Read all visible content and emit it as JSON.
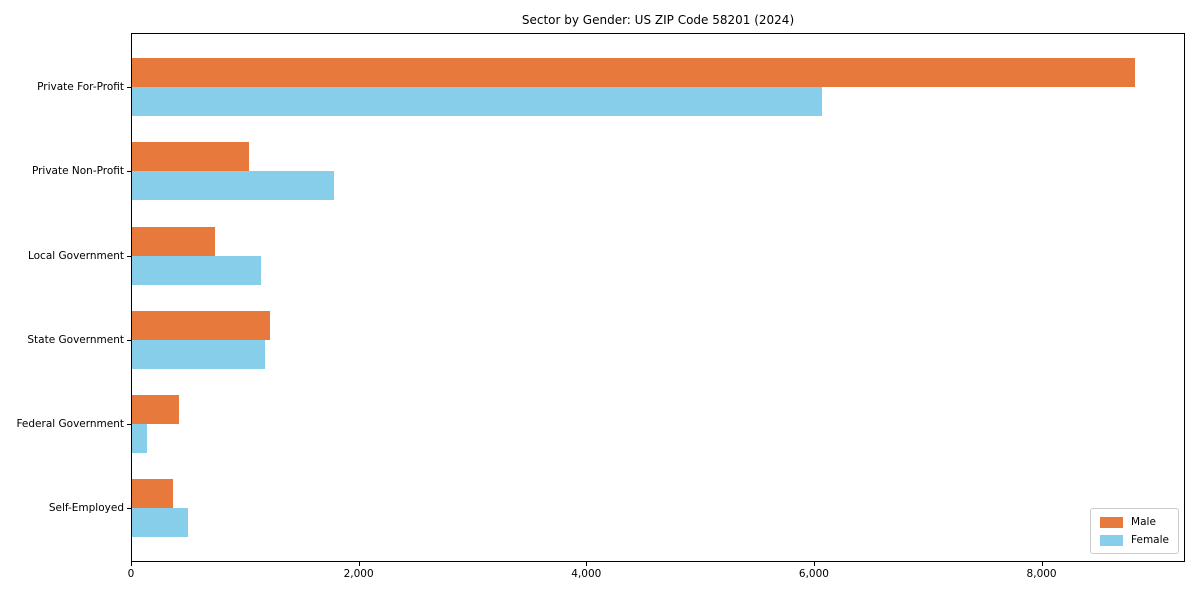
{
  "chart_data": {
    "type": "bar",
    "orientation": "horizontal",
    "title": "Sector by Gender: US ZIP Code 58201 (2024)",
    "categories": [
      "Private For-Profit",
      "Private Non-Profit",
      "Local Government",
      "State Government",
      "Federal Government",
      "Self-Employed"
    ],
    "series": [
      {
        "name": "Male",
        "color": "#E8793D",
        "values": [
          8820,
          1040,
          740,
          1220,
          420,
          370
        ]
      },
      {
        "name": "Female",
        "color": "#87CEEB",
        "values": [
          6070,
          1780,
          1140,
          1180,
          140,
          500
        ]
      }
    ],
    "xlabel": "",
    "ylabel": "",
    "xlim": [
      0,
      9260
    ],
    "xticks": [
      0,
      2000,
      4000,
      6000,
      8000
    ],
    "xtick_labels": [
      "0",
      "2,000",
      "4,000",
      "6,000",
      "8,000"
    ],
    "grid": "off",
    "legend_position": "lower right",
    "axis_color": "#000000",
    "legend_border_color": "#cccccc",
    "background_color": "#ffffff"
  }
}
